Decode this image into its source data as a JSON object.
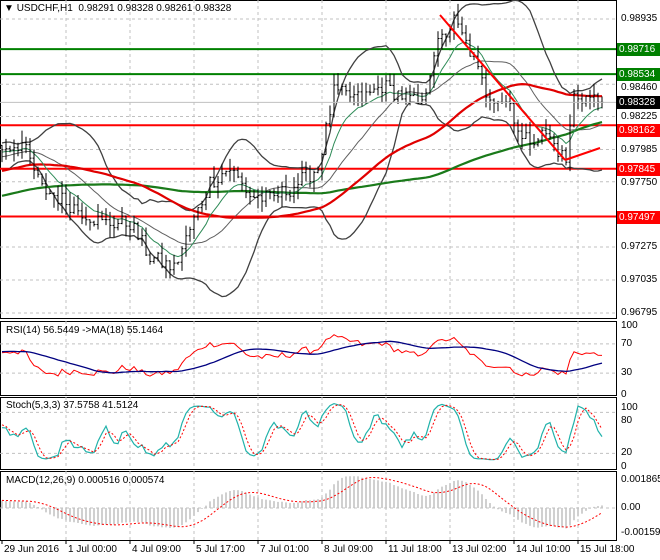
{
  "header": {
    "symbol": "USDCHF,H1",
    "ohlc": "0.98291 0.98328 0.98261 0.98328"
  },
  "chart_data": [
    {
      "type": "line",
      "title": "USDCHF,H1",
      "subtype": "ohlc-bars",
      "price_axis_ticks": [
        "0.98935",
        "0.98460",
        "0.98225",
        "0.97985",
        "0.97750",
        "0.97275",
        "0.97035",
        "0.96795"
      ],
      "ylim": [
        0.96795,
        0.98935
      ],
      "close_waypoints": [
        [
          0,
          0.98
        ],
        [
          5,
          0.9803
        ],
        [
          10,
          0.977
        ],
        [
          15,
          0.9762
        ],
        [
          25,
          0.9745
        ],
        [
          32,
          0.9745
        ],
        [
          37,
          0.972
        ],
        [
          43,
          0.9712
        ],
        [
          47,
          0.974
        ],
        [
          52,
          0.9775
        ],
        [
          57,
          0.9785
        ],
        [
          62,
          0.9765
        ],
        [
          67,
          0.9762
        ],
        [
          72,
          0.977
        ],
        [
          79,
          0.9785
        ],
        [
          83,
          0.984
        ],
        [
          90,
          0.9835
        ],
        [
          95,
          0.9845
        ],
        [
          102,
          0.9835
        ],
        [
          105,
          0.983
        ],
        [
          108,
          0.987
        ],
        [
          113,
          0.9892
        ],
        [
          117,
          0.987
        ],
        [
          121,
          0.984
        ],
        [
          127,
          0.9832
        ],
        [
          130,
          0.9805
        ],
        [
          136,
          0.981
        ],
        [
          141,
          0.979
        ],
        [
          143,
          0.9838
        ],
        [
          147,
          0.9836
        ],
        [
          150,
          0.98328
        ]
      ],
      "levels": [
        {
          "value": "0.98716",
          "color": "#008000"
        },
        {
          "value": "0.98534",
          "color": "#008000"
        },
        {
          "value": "0.98162",
          "color": "#ff0000"
        },
        {
          "value": "0.97845",
          "color": "#ff0000"
        },
        {
          "value": "0.97497",
          "color": "#ff0000"
        }
      ],
      "current_price": "0.98328",
      "indicators": [
        "Bollinger Bands(20,2)",
        "EMA(10)",
        "SMA(50)",
        "SMA(100)"
      ]
    },
    {
      "type": "line",
      "title": "RSI(14) 56.5449  ->MA(18) 55.1464",
      "ylim": [
        0,
        100
      ],
      "ticks": [
        "100",
        "70",
        "30",
        "0"
      ],
      "series": [
        {
          "name": "RSI(14)",
          "color": "#ff0000"
        },
        {
          "name": "MA(18)",
          "color": "#000080"
        }
      ]
    },
    {
      "type": "line",
      "title": "Stoch(5,3,3) 37.5758 41.5124",
      "ylim": [
        0,
        100
      ],
      "ticks": [
        "100",
        "80",
        "20",
        "0"
      ],
      "series": [
        {
          "name": "%K",
          "color": "#20b2aa"
        },
        {
          "name": "%D",
          "color": "#ff0000"
        }
      ]
    },
    {
      "type": "bar",
      "title": "MACD(12,26,9) 0.000516 0.000574",
      "ylim": [
        -0.001595,
        0.001865
      ],
      "ticks": [
        "0.001865",
        "0.00",
        "-0.001595"
      ],
      "series": [
        {
          "name": "MACD",
          "color": "#c0c0c0"
        },
        {
          "name": "Signal",
          "color": "#ff0000"
        }
      ]
    }
  ],
  "time_labels": [
    {
      "bar": 0,
      "label": "29 Jun 2016"
    },
    {
      "bar": 16,
      "label": "1 Jul 00:00"
    },
    {
      "bar": 32,
      "label": "4 Jul 09:00"
    },
    {
      "bar": 48,
      "label": "5 Jul 17:00"
    },
    {
      "bar": 64,
      "label": "7 Jul 01:00"
    },
    {
      "bar": 80,
      "label": "8 Jul 09:00"
    },
    {
      "bar": 96,
      "label": "11 Jul 18:00"
    },
    {
      "bar": 112,
      "label": "13 Jul 02:00"
    },
    {
      "bar": 128,
      "label": "14 Jul 10:00"
    },
    {
      "bar": 144,
      "label": "15 Jul 18:00"
    }
  ]
}
